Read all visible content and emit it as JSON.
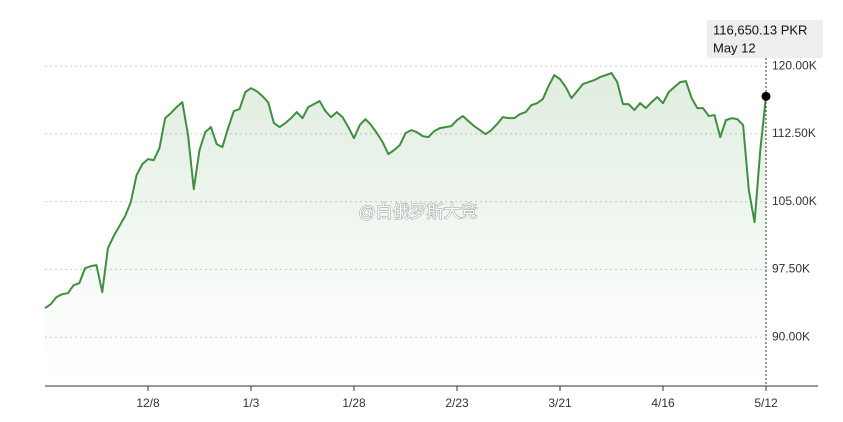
{
  "chart_data": {
    "type": "line",
    "tooltip": {
      "label": "116,650.13 PKR",
      "date": "May 12"
    },
    "watermark": "@白俄罗斯大竞",
    "color": "#3f8f3f",
    "categories": [
      null,
      null,
      null,
      null,
      null,
      null,
      null,
      null,
      null,
      null,
      null,
      null,
      null,
      null,
      null,
      null,
      null,
      null,
      "12/8",
      null,
      null,
      null,
      null,
      null,
      null,
      null,
      null,
      null,
      null,
      null,
      null,
      null,
      null,
      null,
      null,
      null,
      "1/3",
      null,
      null,
      null,
      null,
      null,
      null,
      null,
      null,
      null,
      null,
      null,
      null,
      null,
      null,
      null,
      null,
      null,
      "1/28",
      null,
      null,
      null,
      null,
      null,
      null,
      null,
      null,
      null,
      null,
      null,
      null,
      null,
      null,
      null,
      null,
      null,
      "2/23",
      null,
      null,
      null,
      null,
      null,
      null,
      null,
      null,
      null,
      null,
      null,
      null,
      null,
      null,
      null,
      null,
      null,
      "3/21",
      null,
      null,
      null,
      null,
      null,
      null,
      null,
      null,
      null,
      null,
      null,
      null,
      null,
      null,
      null,
      null,
      null,
      "4/16",
      null,
      null,
      null,
      null,
      null,
      null,
      null,
      null,
      null,
      null,
      null,
      null,
      null,
      null,
      null,
      null,
      null,
      "5/12"
    ],
    "values": [
      93210,
      93650,
      94430,
      94760,
      94870,
      95760,
      95980,
      97640,
      97860,
      97970,
      94980,
      99850,
      101180,
      102290,
      103400,
      104950,
      107930,
      109150,
      109700,
      109590,
      110920,
      114240,
      114800,
      115460,
      116010,
      112360,
      106380,
      110700,
      112690,
      113250,
      111370,
      111030,
      113140,
      115020,
      115240,
      117120,
      117560,
      117230,
      116680,
      116010,
      113690,
      113250,
      113690,
      114240,
      114910,
      114240,
      115460,
      115790,
      116130,
      115020,
      114350,
      114910,
      114350,
      113250,
      112030,
      113470,
      114130,
      113470,
      112580,
      111590,
      110260,
      110700,
      111250,
      112580,
      112920,
      112690,
      112250,
      112140,
      112800,
      113140,
      113250,
      113360,
      114020,
      114470,
      113910,
      113360,
      112920,
      112470,
      112920,
      113580,
      114350,
      114240,
      114240,
      114690,
      114910,
      115680,
      115900,
      116350,
      117790,
      119000,
      118560,
      117680,
      116460,
      117230,
      118010,
      118230,
      118450,
      118780,
      119000,
      119230,
      118230,
      115790,
      115790,
      115130,
      115900,
      115350,
      116010,
      116570,
      115900,
      117120,
      117680,
      118230,
      118340,
      116460,
      115350,
      115350,
      114470,
      114580,
      112140,
      114020,
      114240,
      114130,
      113470,
      106270,
      102730,
      110700,
      116650.13
    ],
    "ylim": [
      84600,
      125100
    ],
    "yticks": [
      {
        "value": 90000,
        "label": "90.00K"
      },
      {
        "value": 97500,
        "label": "97.50K"
      },
      {
        "value": 105000,
        "label": "105.00K"
      },
      {
        "value": 112500,
        "label": "112.50K"
      },
      {
        "value": 120000,
        "label": "120.00K"
      }
    ],
    "grid": true
  }
}
